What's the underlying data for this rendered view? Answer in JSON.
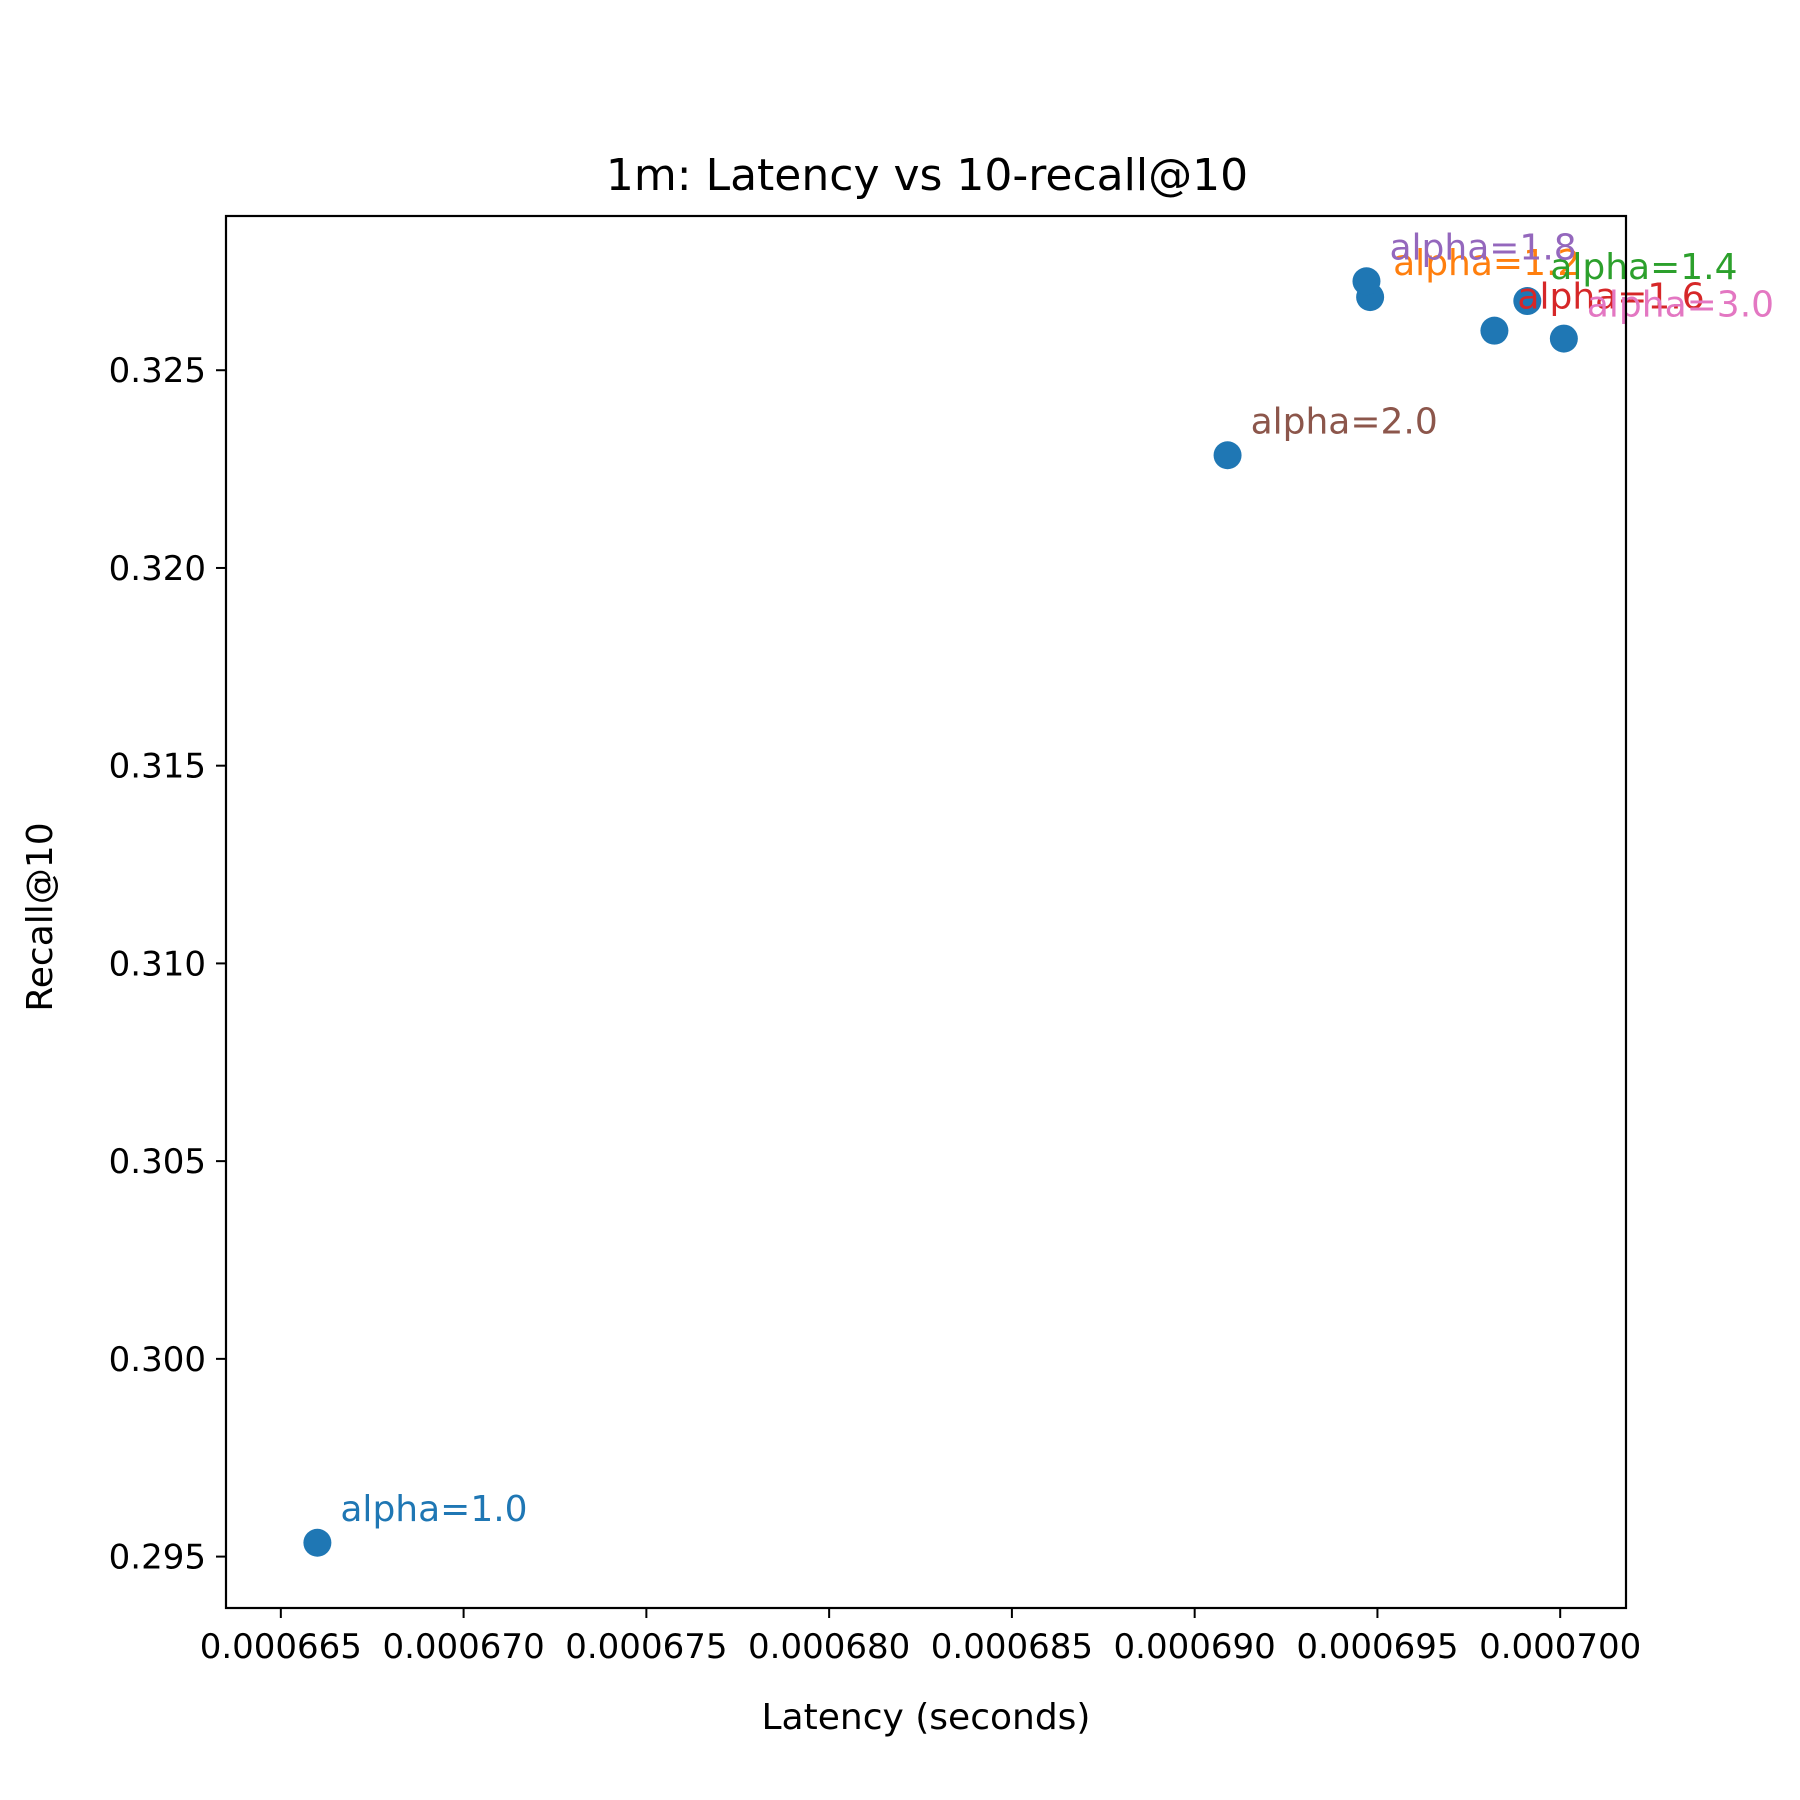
{
  "chart_data": {
    "type": "scatter",
    "title": "1m: Latency vs 10-recall@10",
    "xlabel": "Latency (seconds)",
    "ylabel": "Recall@10",
    "xlim": [
      0.0006635,
      0.0007018
    ],
    "ylim": [
      0.2937,
      0.3289
    ],
    "x_ticks": [
      0.000665,
      0.00067,
      0.000675,
      0.00068,
      0.000685,
      0.00069,
      0.000695,
      0.0007
    ],
    "x_tick_labels": [
      "0.000665",
      "0.000670",
      "0.000675",
      "0.000680",
      "0.000685",
      "0.000690",
      "0.000695",
      "0.000700"
    ],
    "y_ticks": [
      0.295,
      0.3,
      0.305,
      0.31,
      0.315,
      0.32,
      0.325
    ],
    "y_tick_labels": [
      "0.295",
      "0.300",
      "0.305",
      "0.310",
      "0.315",
      "0.320",
      "0.325"
    ],
    "grid": false,
    "marker_color": "#1f77b4",
    "points": [
      {
        "x": 0.000666,
        "y": 0.29535,
        "label": "alpha=1.0",
        "color": "#1f77b4"
      },
      {
        "x": 0.0006948,
        "y": 0.32685,
        "label": "alpha=1.2",
        "color": "#ff7f0e"
      },
      {
        "x": 0.0006991,
        "y": 0.32675,
        "label": "alpha=1.4",
        "color": "#2ca02c"
      },
      {
        "x": 0.0006982,
        "y": 0.326,
        "label": "alpha=1.6",
        "color": "#d62728"
      },
      {
        "x": 0.0006947,
        "y": 0.32725,
        "label": "alpha=1.8",
        "color": "#9467bd"
      },
      {
        "x": 0.0006909,
        "y": 0.32285,
        "label": "alpha=2.0",
        "color": "#8c564b"
      },
      {
        "x": 0.0007001,
        "y": 0.3258,
        "label": "alpha=3.0",
        "color": "#e377c2"
      }
    ]
  }
}
